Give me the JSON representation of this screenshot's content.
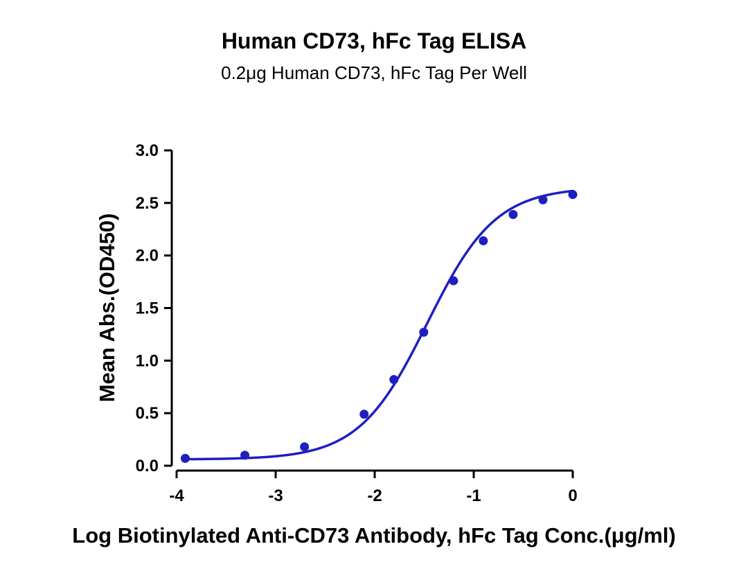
{
  "chart_data": {
    "type": "line",
    "title": "Human CD73, hFc Tag ELISA",
    "subtitle": "0.2μg Human CD73, hFc Tag Per Well",
    "xlabel": "Log Biotinylated Anti-CD73 Antibody, hFc Tag Conc.(μg/ml)",
    "ylabel": "Mean Abs.(OD450)",
    "xlim": [
      -4,
      0
    ],
    "ylim": [
      0,
      3.0
    ],
    "x_ticks": [
      "-4",
      "-3",
      "-2",
      "-1",
      "0"
    ],
    "y_ticks": [
      "0.0",
      "0.5",
      "1.0",
      "1.5",
      "2.0",
      "2.5",
      "3.0"
    ],
    "grid": false,
    "series": [
      {
        "color": "#1f1fbf",
        "x": [
          -3.913,
          -3.311,
          -2.709,
          -2.107,
          -1.806,
          -1.505,
          -1.204,
          -0.903,
          -0.602,
          -0.301,
          0.0
        ],
        "y": [
          0.07,
          0.1,
          0.18,
          0.49,
          0.82,
          1.27,
          1.76,
          2.14,
          2.39,
          2.53,
          2.58
        ]
      }
    ]
  }
}
